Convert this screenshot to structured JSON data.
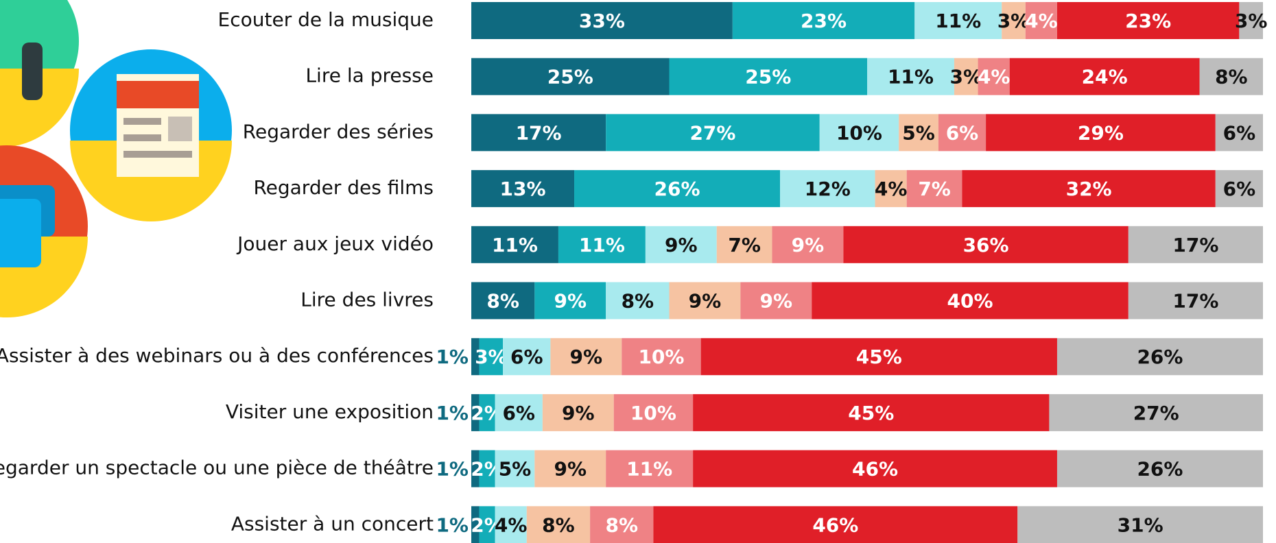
{
  "chart_data": {
    "type": "stacked-bar",
    "categories": [
      "Ecouter de la musique",
      "Lire la presse",
      "Regarder des séries",
      "Regarder des films",
      "Jouer aux jeux vidéo",
      "Lire des livres",
      "Assister à des webinars ou à des conférences",
      "Visiter une exposition",
      "Regarder un spectacle ou une pièce de théâtre",
      "Assister à un concert"
    ],
    "series": [
      {
        "color": "#0f6a80",
        "label_color": "#ffffff",
        "values": [
          33,
          25,
          17,
          13,
          11,
          8,
          1,
          1,
          1,
          1
        ],
        "value_labels": [
          "33%",
          "25%",
          "17%",
          "13%",
          "11%",
          "8%",
          "1%",
          "1%",
          "1%",
          "1%"
        ]
      },
      {
        "color": "#13adb8",
        "label_color": "#ffffff",
        "values": [
          23,
          25,
          27,
          26,
          11,
          9,
          3,
          2,
          2,
          2
        ],
        "value_labels": [
          "23%",
          "25%",
          "27%",
          "26%",
          "11%",
          "9%",
          "3%",
          "2%",
          "2%",
          "2%"
        ]
      },
      {
        "color": "#a8eaee",
        "label_color": "#111111",
        "values": [
          11,
          11,
          10,
          12,
          9,
          8,
          6,
          6,
          5,
          4
        ],
        "value_labels": [
          "11%",
          "11%",
          "10%",
          "12%",
          "9%",
          "8%",
          "6%",
          "6%",
          "5%",
          "4%"
        ]
      },
      {
        "color": "#f6c3a2",
        "label_color": "#111111",
        "values": [
          3,
          3,
          5,
          4,
          7,
          9,
          9,
          9,
          9,
          8
        ],
        "value_labels": [
          "3%",
          "3%",
          "5%",
          "4%",
          "7%",
          "9%",
          "9%",
          "9%",
          "9%",
          "8%"
        ]
      },
      {
        "color": "#ef8285",
        "label_color": "#ffffff",
        "values": [
          4,
          4,
          6,
          7,
          9,
          9,
          10,
          10,
          11,
          8
        ],
        "value_labels": [
          "4%",
          "4%",
          "6%",
          "7%",
          "9%",
          "9%",
          "10%",
          "10%",
          "11%",
          "8%"
        ]
      },
      {
        "color": "#e01f28",
        "label_color": "#ffffff",
        "values": [
          23,
          24,
          29,
          32,
          36,
          40,
          45,
          45,
          46,
          46
        ],
        "value_labels": [
          "23%",
          "24%",
          "29%",
          "32%",
          "36%",
          "40%",
          "45%",
          "45%",
          "46%",
          "46%"
        ]
      },
      {
        "color": "#bdbdbd",
        "label_color": "#111111",
        "values": [
          3,
          8,
          6,
          6,
          17,
          17,
          26,
          27,
          26,
          31
        ],
        "value_labels": [
          "3%",
          "8%",
          "6%",
          "6%",
          "17%",
          "17%",
          "26%",
          "27%",
          "26%",
          "31%"
        ]
      }
    ]
  }
}
